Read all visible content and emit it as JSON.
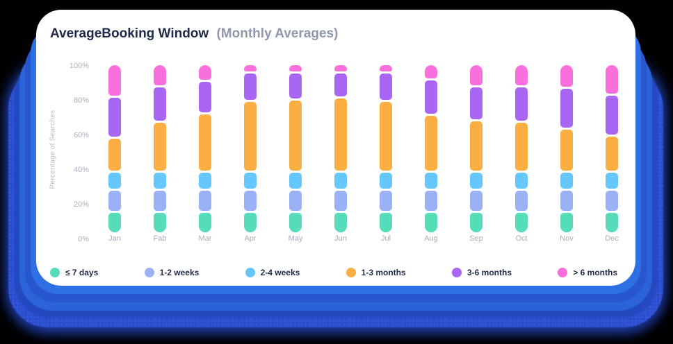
{
  "card": {
    "title": "AverageBooking Window",
    "subtitle": "(Monthly Averages)"
  },
  "colors": {
    "background": "#000000",
    "card_background": "#ffffff",
    "title": "#1E2A4A",
    "subtitle": "#9099AC",
    "axis_text": "#A9B1BF",
    "shadow_blues": [
      "#2E6FE3",
      "#2857CD",
      "#2C63DA",
      "#2448BE",
      "#2F4FD0"
    ]
  },
  "chart_data": {
    "type": "bar",
    "stacked": true,
    "title": "AverageBooking Window (Monthly Averages)",
    "xlabel": "",
    "ylabel": "Percentage of Searches",
    "ylim": [
      0,
      100
    ],
    "yticks": [
      "0%",
      "20%",
      "40%",
      "60%",
      "80%",
      "100%"
    ],
    "grid": false,
    "legend_position": "bottom",
    "categories": [
      "Jan",
      "Fab",
      "Mar",
      "Apr",
      "May",
      "Jun",
      "Jul",
      "Aug",
      "Sep",
      "Oct",
      "Nov",
      "Dec"
    ],
    "series": [
      {
        "name": "≤ 7 days",
        "color": "#57DCB9",
        "values": [
          13,
          13,
          13,
          13,
          13,
          13,
          13,
          13,
          13,
          13,
          13,
          13
        ]
      },
      {
        "name": "1-2 weeks",
        "color": "#9AB1F6",
        "values": [
          13,
          13,
          13,
          13,
          13,
          13,
          13,
          13,
          13,
          13,
          13,
          13
        ]
      },
      {
        "name": "2-4 weeks",
        "color": "#66C7FC",
        "values": [
          11,
          11,
          11,
          11,
          11,
          11,
          11,
          11,
          11,
          11,
          11,
          11
        ]
      },
      {
        "name": "1-3 months",
        "color": "#FBAE42",
        "values": [
          20,
          29,
          34,
          41,
          42,
          43,
          41,
          33,
          30,
          29,
          25,
          21
        ]
      },
      {
        "name": "3-6 months",
        "color": "#A966F2",
        "values": [
          24,
          21,
          19,
          17,
          16,
          15,
          17,
          21,
          20,
          21,
          24,
          24
        ]
      },
      {
        "name": "> 6 months",
        "color": "#F970DC",
        "values": [
          19,
          13,
          10,
          5,
          5,
          5,
          5,
          9,
          13,
          13,
          14,
          18
        ]
      }
    ]
  }
}
